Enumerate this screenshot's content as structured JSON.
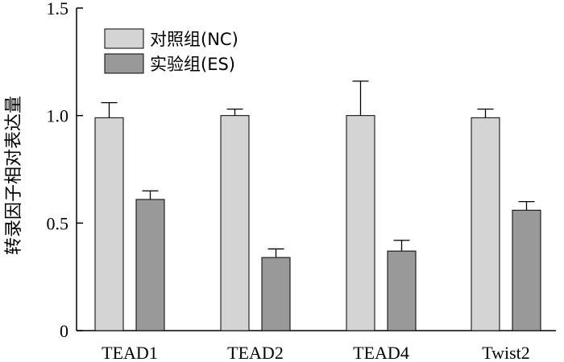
{
  "chart_data": {
    "type": "bar",
    "title": "",
    "xlabel": "",
    "ylabel": "转录因子相对表达量",
    "ylim": [
      0,
      1.5
    ],
    "yticks": [
      "0",
      "0.5",
      "1.0",
      "1.5"
    ],
    "ytick_values": [
      0,
      0.5,
      1.0,
      1.5
    ],
    "categories": [
      "TEAD1",
      "TEAD2",
      "TEAD4",
      "Twist2"
    ],
    "series": [
      {
        "name": "对照组(NC)",
        "values": [
          0.99,
          1.0,
          1.0,
          0.99
        ],
        "errors": [
          0.07,
          0.03,
          0.16,
          0.04
        ],
        "color": "#d4d4d4"
      },
      {
        "name": "实验组(ES)",
        "values": [
          0.61,
          0.34,
          0.37,
          0.56
        ],
        "errors": [
          0.04,
          0.04,
          0.05,
          0.04
        ],
        "color": "#999999"
      }
    ],
    "legend_position": "top-left",
    "grid": false
  }
}
